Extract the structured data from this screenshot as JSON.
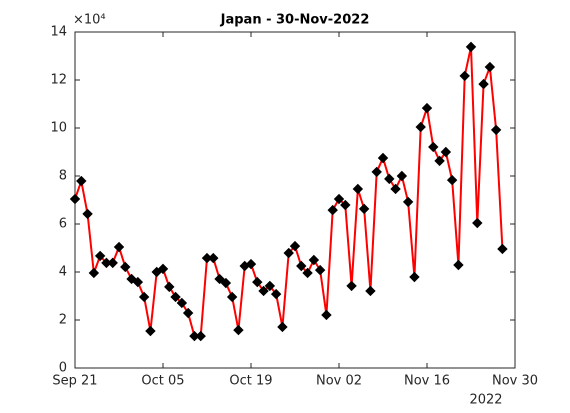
{
  "chart_data": {
    "type": "line",
    "title": "Japan - 30-Nov-2022",
    "y_exponent_label": "×10⁴",
    "x_year_label": "2022",
    "x": [
      "2022-09-21",
      "2022-09-22",
      "2022-09-23",
      "2022-09-24",
      "2022-09-25",
      "2022-09-26",
      "2022-09-27",
      "2022-09-28",
      "2022-09-29",
      "2022-09-30",
      "2022-10-01",
      "2022-10-02",
      "2022-10-03",
      "2022-10-04",
      "2022-10-05",
      "2022-10-06",
      "2022-10-07",
      "2022-10-08",
      "2022-10-09",
      "2022-10-10",
      "2022-10-11",
      "2022-10-12",
      "2022-10-13",
      "2022-10-14",
      "2022-10-15",
      "2022-10-16",
      "2022-10-17",
      "2022-10-18",
      "2022-10-19",
      "2022-10-20",
      "2022-10-21",
      "2022-10-22",
      "2022-10-23",
      "2022-10-24",
      "2022-10-25",
      "2022-10-26",
      "2022-10-27",
      "2022-10-28",
      "2022-10-29",
      "2022-10-30",
      "2022-10-31",
      "2022-11-01",
      "2022-11-02",
      "2022-11-03",
      "2022-11-04",
      "2022-11-05",
      "2022-11-06",
      "2022-11-07",
      "2022-11-08",
      "2022-11-09",
      "2022-11-10",
      "2022-11-11",
      "2022-11-12",
      "2022-11-13",
      "2022-11-14",
      "2022-11-15",
      "2022-11-16",
      "2022-11-17",
      "2022-11-18",
      "2022-11-19",
      "2022-11-20",
      "2022-11-21",
      "2022-11-22",
      "2022-11-23",
      "2022-11-24",
      "2022-11-25",
      "2022-11-26",
      "2022-11-27",
      "2022-11-28"
    ],
    "series": [
      {
        "color": "#ff0000",
        "marker_color": "#000000",
        "values": [
          7.04,
          7.79,
          6.42,
          3.96,
          4.67,
          4.38,
          4.38,
          5.04,
          4.21,
          3.71,
          3.58,
          2.96,
          1.54,
          4.0,
          4.13,
          3.38,
          2.96,
          2.71,
          2.29,
          1.33,
          1.33,
          4.58,
          4.58,
          3.71,
          3.54,
          2.96,
          1.58,
          4.25,
          4.33,
          3.58,
          3.21,
          3.42,
          3.08,
          1.71,
          4.79,
          5.08,
          4.25,
          3.96,
          4.5,
          4.08,
          2.21,
          6.58,
          7.04,
          6.79,
          3.42,
          7.46,
          6.63,
          3.21,
          8.17,
          8.75,
          7.88,
          7.46,
          8.0,
          6.92,
          3.79,
          10.04,
          10.83,
          9.21,
          8.63,
          9.0,
          7.83,
          4.29,
          12.17,
          13.38,
          6.04,
          11.83,
          12.54,
          9.92,
          4.96
        ]
      }
    ],
    "xlim": [
      "2022-09-21",
      "2022-11-30"
    ],
    "xticks": [
      {
        "value": "2022-09-21",
        "label": "Sep 21"
      },
      {
        "value": "2022-10-05",
        "label": "Oct 05"
      },
      {
        "value": "2022-10-19",
        "label": "Oct 19"
      },
      {
        "value": "2022-11-02",
        "label": "Nov 02"
      },
      {
        "value": "2022-11-16",
        "label": "Nov 16"
      },
      {
        "value": "2022-11-30",
        "label": "Nov 30"
      }
    ],
    "ylim": [
      0,
      14
    ],
    "yticks": [
      0,
      2,
      4,
      6,
      8,
      10,
      12,
      14
    ],
    "grid": false
  }
}
